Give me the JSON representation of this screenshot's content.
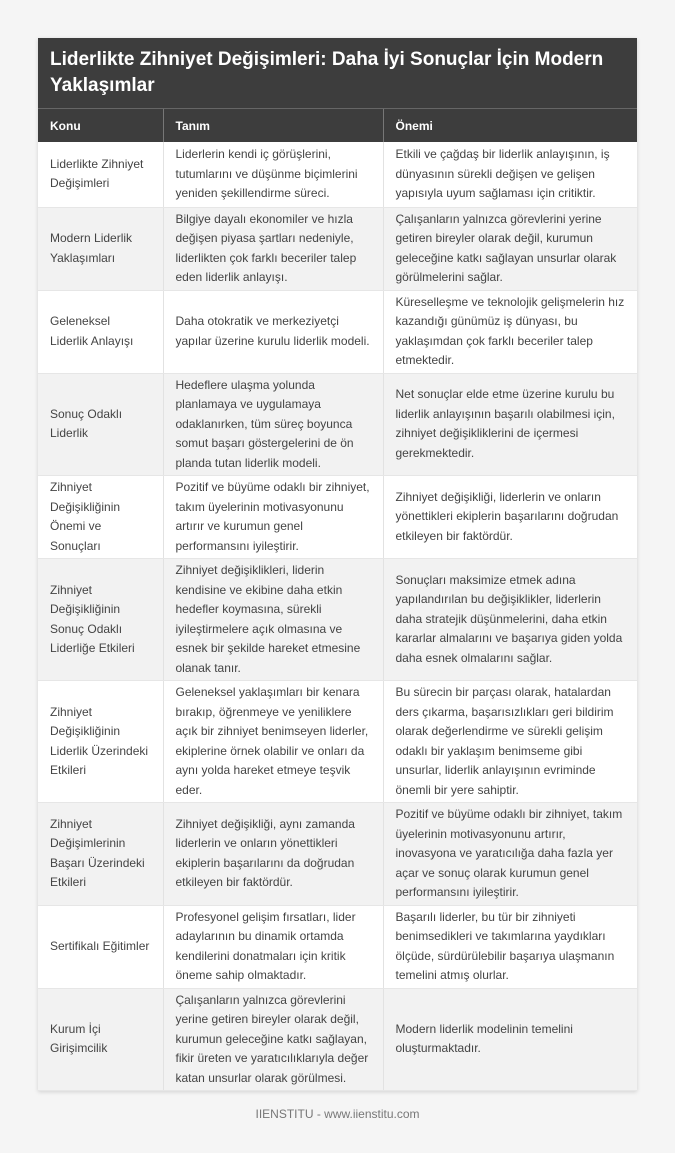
{
  "title": "Liderlikte Zihniyet Değişimleri: Daha İyi Sonuçlar İçin Modern Yaklaşımlar",
  "headers": [
    "Konu",
    "Tanım",
    "Önemi"
  ],
  "rows": [
    [
      "Liderlikte Zihniyet Değişimleri",
      "Liderlerin kendi iç görüşlerini, tutumlarını ve düşünme biçimlerini yeniden şekillendirme süreci.",
      "Etkili ve çağdaş bir liderlik anlayışının, iş dünyasının sürekli değişen ve gelişen yapısıyla uyum sağlaması için critiktir."
    ],
    [
      "Modern Liderlik Yaklaşımları",
      "Bilgiye dayalı ekonomiler ve hızla değişen piyasa şartları nedeniyle, liderlikten çok farklı beceriler talep eden liderlik anlayışı.",
      "Çalışanların yalnızca görevlerini yerine getiren bireyler olarak değil, kurumun geleceğine katkı sağlayan unsurlar olarak görülmelerini sağlar."
    ],
    [
      "Geleneksel Liderlik Anlayışı",
      "Daha otokratik ve merkeziyetçi yapılar üzerine kurulu liderlik modeli.",
      "Küreselleşme ve teknolojik gelişmelerin hız kazandığı günümüz iş dünyası, bu yaklaşımdan çok farklı beceriler talep etmektedir."
    ],
    [
      "Sonuç Odaklı Liderlik",
      "Hedeflere ulaşma yolunda planlamaya ve uygulamaya odaklanırken, tüm süreç boyunca somut başarı göstergelerini de ön planda tutan liderlik modeli.",
      "Net sonuçlar elde etme üzerine kurulu bu liderlik anlayışının başarılı olabilmesi için, zihniyet değişikliklerini de içermesi gerekmektedir."
    ],
    [
      "Zihniyet Değişikliğinin Önemi ve Sonuçları",
      "Pozitif ve büyüme odaklı bir zihniyet, takım üyelerinin motivasyonunu artırır ve kurumun genel performansını iyileştirir.",
      "Zihniyet değişikliği, liderlerin ve onların yönettikleri ekiplerin başarılarını doğrudan etkileyen bir faktördür."
    ],
    [
      "Zihniyet Değişikliğinin Sonuç Odaklı Liderliğe Etkileri",
      "Zihniyet değişiklikleri, liderin kendisine ve ekibine daha etkin hedefler koymasına, sürekli iyileştirmelere açık olmasına ve esnek bir şekilde hareket etmesine olanak tanır.",
      "Sonuçları maksimize etmek adına yapılandırılan bu değişiklikler, liderlerin daha stratejik düşünmelerini, daha etkin kararlar almalarını ve başarıya giden yolda daha esnek olmalarını sağlar."
    ],
    [
      "Zihniyet Değişikliğinin Liderlik Üzerindeki Etkileri",
      "Geleneksel yaklaşımları bir kenara bırakıp, öğrenmeye ve yeniliklere açık bir zihniyet benimseyen liderler, ekiplerine örnek olabilir ve onları da aynı yolda hareket etmeye teşvik eder.",
      "Bu sürecin bir parçası olarak, hatalardan ders çıkarma, başarısızlıkları geri bildirim olarak değerlendirme ve sürekli gelişim odaklı bir yaklaşım benimseme gibi unsurlar, liderlik anlayışının evriminde önemli bir yere sahiptir."
    ],
    [
      "Zihniyet Değişimlerinin Başarı Üzerindeki Etkileri",
      "Zihniyet değişikliği, aynı zamanda liderlerin ve onların yönettikleri ekiplerin başarılarını da doğrudan etkileyen bir faktördür.",
      "Pozitif ve büyüme odaklı bir zihniyet, takım üyelerinin motivasyonunu artırır, inovasyona ve yaratıcılığa daha fazla yer açar ve sonuç olarak kurumun genel performansını iyileştirir."
    ],
    [
      "Sertifikalı Eğitimler",
      "Profesyonel gelişim fırsatları, lider adaylarının bu dinamik ortamda kendilerini donatmaları için kritik öneme sahip olmaktadır.",
      "Başarılı liderler, bu tür bir zihniyeti benimsedikleri ve takımlarına yaydıkları ölçüde, sürdürülebilir başarıya ulaşmanın temelini atmış olurlar."
    ],
    [
      "Kurum İçi Girişimcilik",
      "Çalışanların yalnızca görevlerini yerine getiren bireyler olarak değil, kurumun geleceğine katkı sağlayan, fikir üreten ve yaratıcılıklarıyla değer katan unsurlar olarak görülmesi.",
      "Modern liderlik modelinin temelini oluşturmaktadır."
    ]
  ],
  "footer": "IIENSTITU - www.iienstitu.com"
}
